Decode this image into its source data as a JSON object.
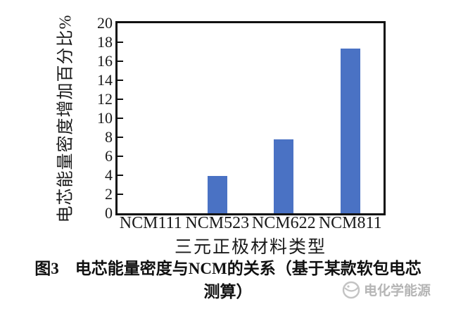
{
  "chart_data": {
    "type": "bar",
    "categories": [
      "NCM111",
      "NCM523",
      "NCM622",
      "NCM811"
    ],
    "values": [
      0,
      3.9,
      7.8,
      17.3
    ],
    "title": "",
    "xlabel": "三元正极材料类型",
    "ylabel": "电芯能量密度增加百分比%",
    "ylim": [
      0,
      20
    ],
    "ytick_step": 2,
    "yticks": [
      0,
      2,
      4,
      6,
      8,
      10,
      12,
      14,
      16,
      18,
      20
    ],
    "bar_color": "#4a72c4",
    "axis_color": "#111111",
    "grid": false,
    "legend": false
  },
  "caption": {
    "line1": "图3　电芯能量密度与NCM的关系（基于某款软包电芯",
    "line2": "测算）"
  },
  "watermark": {
    "text": "电化学能源",
    "logo": "circular-swirl-logo-icon",
    "color": "#b5b5b5"
  }
}
